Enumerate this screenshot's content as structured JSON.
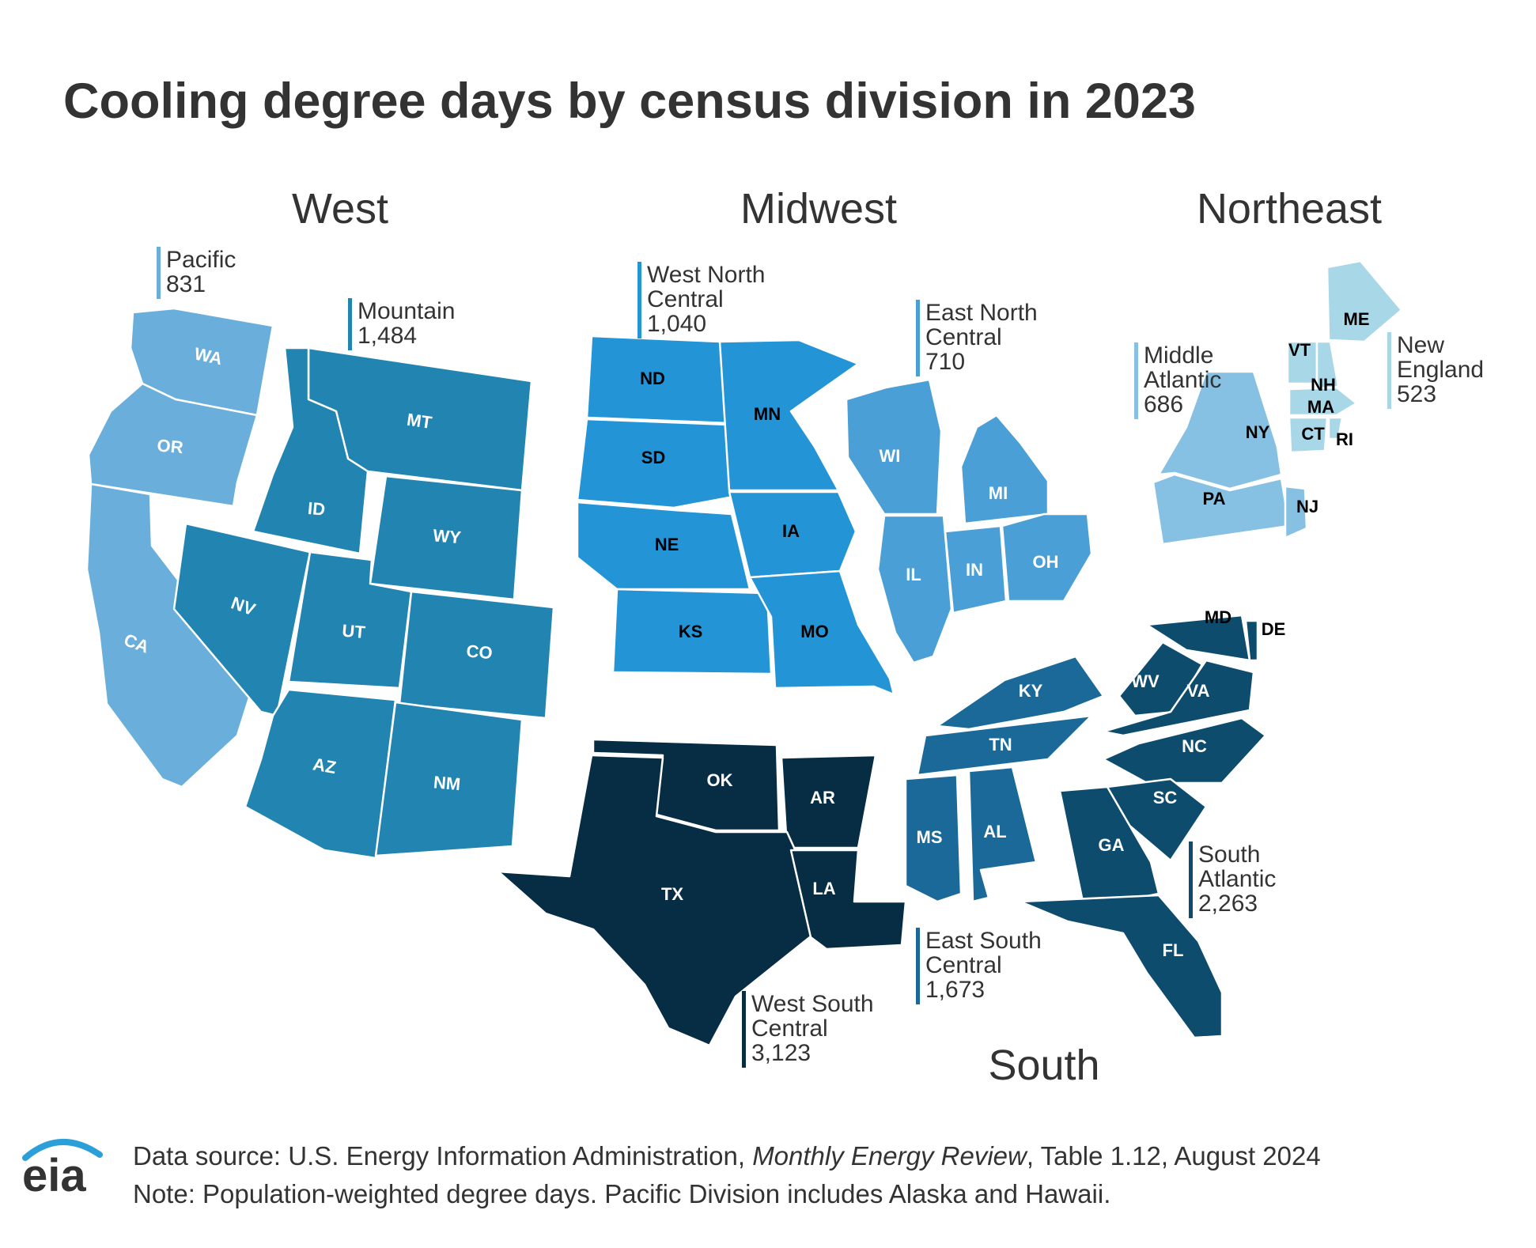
{
  "title": "Cooling degree days by census division in 2023",
  "regions": [
    "West",
    "Midwest",
    "Northeast",
    "South"
  ],
  "colors": {
    "Pacific": "#6aafdb",
    "Mountain": "#2285b1",
    "West North Central": "#2394d6",
    "East North Central": "#4a9fd6",
    "Middle Atlantic": "#86c0e2",
    "New England": "#a8d8e8",
    "South Atlantic": "#0e4c6e",
    "East South Central": "#1b6998",
    "West South Central": "#072d45"
  },
  "divisions": [
    {
      "name_lines": [
        "Pacific"
      ],
      "value": "831",
      "region": "West"
    },
    {
      "name_lines": [
        "Mountain"
      ],
      "value": "1,484",
      "region": "West"
    },
    {
      "name_lines": [
        "West North",
        "Central"
      ],
      "value": "1,040",
      "region": "Midwest"
    },
    {
      "name_lines": [
        "East North",
        "Central"
      ],
      "value": "710",
      "region": "Midwest"
    },
    {
      "name_lines": [
        "Middle",
        "Atlantic"
      ],
      "value": "686",
      "region": "Northeast"
    },
    {
      "name_lines": [
        "New",
        "England"
      ],
      "value": "523",
      "region": "Northeast"
    },
    {
      "name_lines": [
        "South",
        "Atlantic"
      ],
      "value": "2,263",
      "region": "South"
    },
    {
      "name_lines": [
        "East South",
        "Central"
      ],
      "value": "1,673",
      "region": "South"
    },
    {
      "name_lines": [
        "West South",
        "Central"
      ],
      "value": "3,123",
      "region": "South"
    }
  ],
  "states": {
    "Pacific": [
      "WA",
      "OR",
      "CA"
    ],
    "Mountain": [
      "MT",
      "ID",
      "WY",
      "NV",
      "UT",
      "CO",
      "AZ",
      "NM"
    ],
    "West North Central": [
      "ND",
      "MN",
      "SD",
      "NE",
      "IA",
      "KS",
      "MO"
    ],
    "East North Central": [
      "WI",
      "MI",
      "IL",
      "IN",
      "OH"
    ],
    "Middle Atlantic": [
      "NY",
      "PA",
      "NJ"
    ],
    "New England": [
      "ME",
      "VT",
      "NH",
      "MA",
      "CT",
      "RI"
    ],
    "South Atlantic": [
      "MD",
      "DE",
      "WV",
      "VA",
      "NC",
      "SC",
      "GA",
      "FL"
    ],
    "East South Central": [
      "KY",
      "TN",
      "MS",
      "AL"
    ],
    "West South Central": [
      "OK",
      "AR",
      "TX",
      "LA"
    ]
  },
  "footer": {
    "source_prefix": "Data source: U.S. Energy Information Administration, ",
    "source_title": "Monthly Energy Review",
    "source_suffix": ", Table 1.12, August 2024",
    "note": "Note: Population-weighted degree days. Pacific Division includes Alaska and Hawaii."
  },
  "logo_text": "eia"
}
